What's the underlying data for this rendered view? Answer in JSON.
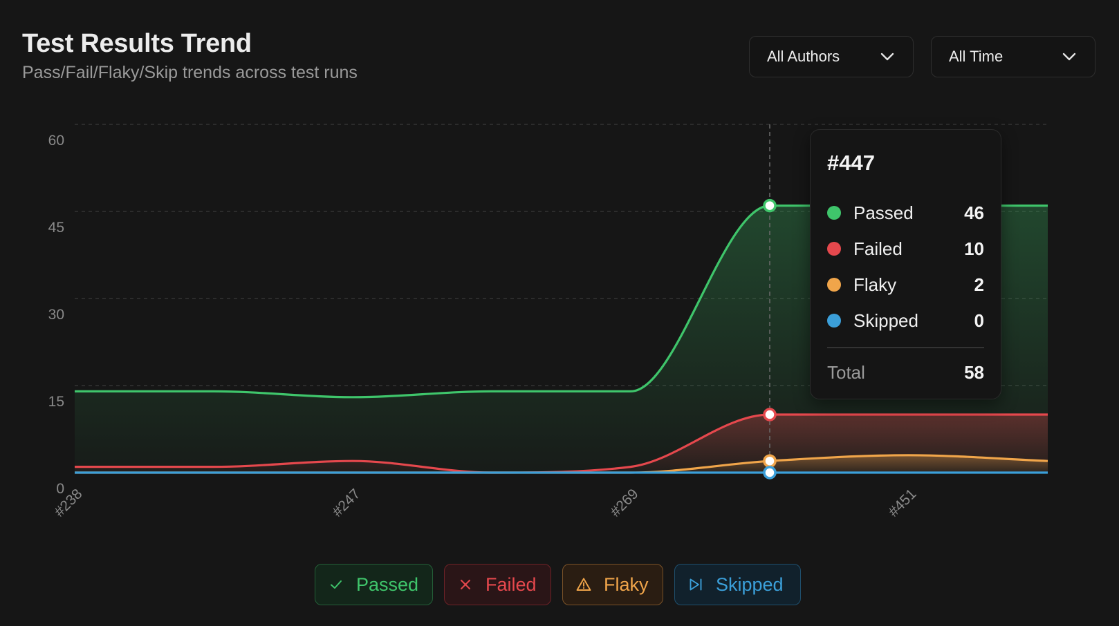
{
  "header": {
    "title": "Test Results Trend",
    "subtitle": "Pass/Fail/Flaky/Skip trends across test runs"
  },
  "filters": {
    "author": {
      "label": "All Authors",
      "icon": "chevron-down-icon"
    },
    "time": {
      "label": "All Time",
      "icon": "chevron-down-icon"
    }
  },
  "colors": {
    "background": "#161616",
    "passed": "#3fc56b",
    "failed": "#e5484d",
    "flaky": "#f0a54a",
    "skipped": "#3b9fd9",
    "grid": "#3a3a3a",
    "tick": "#8a8a8a"
  },
  "tooltip": {
    "title": "#447",
    "rows": [
      {
        "name": "Passed",
        "value": "46",
        "color": "#3fc56b"
      },
      {
        "name": "Failed",
        "value": "10",
        "color": "#e5484d"
      },
      {
        "name": "Flaky",
        "value": "2",
        "color": "#f0a54a"
      },
      {
        "name": "Skipped",
        "value": "0",
        "color": "#3b9fd9"
      }
    ],
    "total_label": "Total",
    "total_value": "58"
  },
  "legend": [
    {
      "key": "passed",
      "label": "Passed",
      "icon": "check-icon"
    },
    {
      "key": "failed",
      "label": "Failed",
      "icon": "x-icon"
    },
    {
      "key": "flaky",
      "label": "Flaky",
      "icon": "warning-triangle-icon"
    },
    {
      "key": "skipped",
      "label": "Skipped",
      "icon": "skip-forward-icon"
    }
  ],
  "chart_data": {
    "type": "area",
    "title": "Test Results Trend",
    "subtitle": "Pass/Fail/Flaky/Skip trends across test runs",
    "xlabel": "",
    "ylabel": "",
    "x_tick_labels": [
      "#238",
      "#247",
      "#269",
      "#451"
    ],
    "x_tick_indices": [
      0,
      2,
      4,
      6
    ],
    "point_count": 8,
    "hover_index": 5,
    "hover_label": "#447",
    "ylim": [
      0,
      60
    ],
    "yticks": [
      0,
      15,
      30,
      45,
      60
    ],
    "grid": true,
    "legend_position": "bottom",
    "series": [
      {
        "name": "Passed",
        "color": "#3fc56b",
        "values": [
          14,
          14,
          13,
          14,
          14,
          46,
          46,
          46
        ]
      },
      {
        "name": "Failed",
        "color": "#e5484d",
        "values": [
          1,
          1,
          2,
          0,
          1,
          10,
          10,
          10
        ]
      },
      {
        "name": "Flaky",
        "color": "#f0a54a",
        "values": [
          0,
          0,
          0,
          0,
          0,
          2,
          3,
          2
        ]
      },
      {
        "name": "Skipped",
        "color": "#3b9fd9",
        "values": [
          0,
          0,
          0,
          0,
          0,
          0,
          0,
          0
        ]
      }
    ]
  }
}
